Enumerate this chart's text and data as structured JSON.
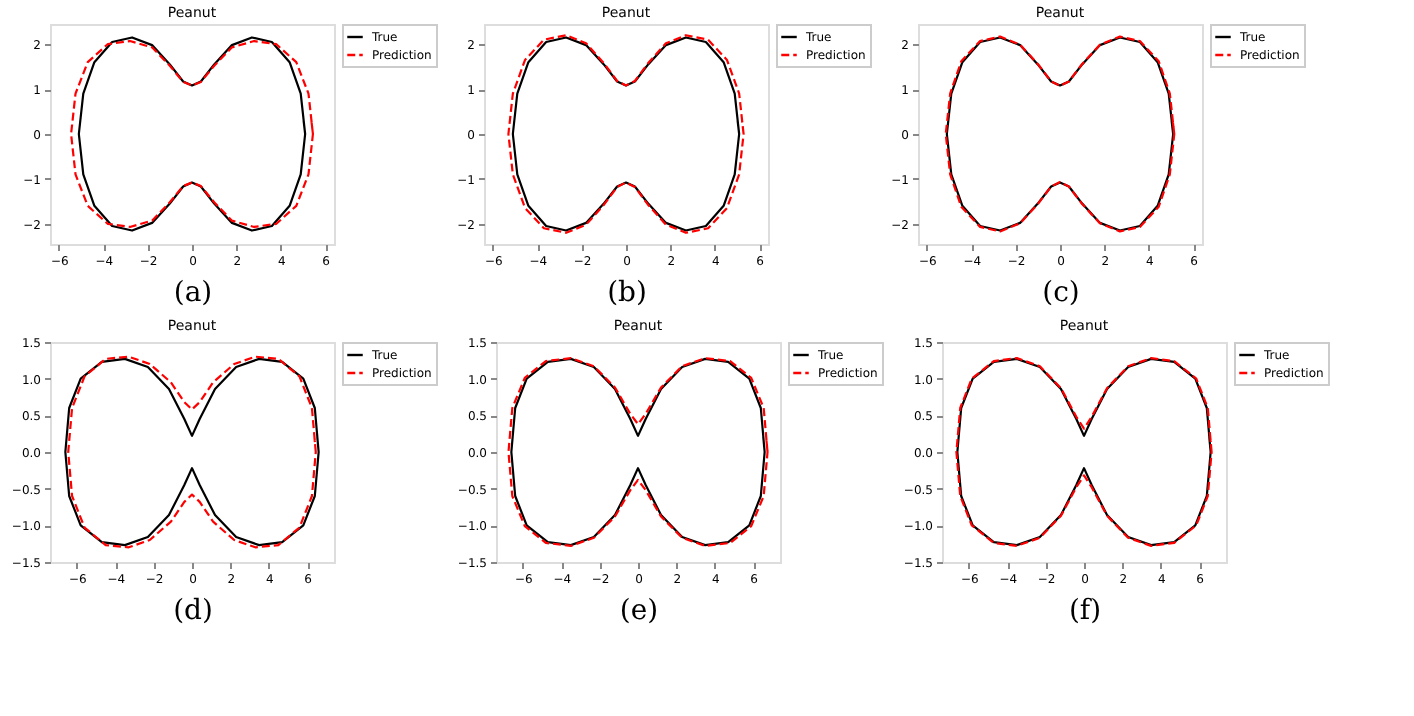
{
  "chart_data": [
    {
      "type": "line",
      "title": "Peanut",
      "annotations": [
        "(a)"
      ],
      "legend": "top right",
      "grid": false,
      "xlim": [
        -6.4,
        6.4
      ],
      "ylim": [
        -2.45,
        2.45
      ],
      "xticks": [
        {
          "value": -6,
          "label": "−6"
        },
        {
          "value": -4,
          "label": "−4"
        },
        {
          "value": -2,
          "label": "−2"
        },
        0,
        2,
        4,
        6
      ],
      "yticks": [
        {
          "value": -2,
          "label": "−2"
        },
        {
          "value": -1,
          "label": "−1"
        },
        0,
        1,
        2
      ],
      "series": [
        {
          "name": "True",
          "color": "#000000",
          "line_style": "solid",
          "x": [
            5.1,
            4.9,
            4.4,
            3.6,
            2.7,
            1.8,
            1.0,
            0.4,
            0,
            -0.4,
            -1.0,
            -1.8,
            -2.7,
            -3.6,
            -4.4,
            -4.9,
            -5.1,
            -4.9,
            -4.4,
            -3.6,
            -2.7,
            -1.8,
            -1.0,
            -0.4,
            0,
            0.4,
            1.0,
            1.8,
            2.7,
            3.6,
            4.4,
            4.9,
            5.1,
            5.03
          ],
          "values": [
            0,
            0.9,
            1.6,
            2.05,
            2.15,
            1.98,
            1.55,
            1.17,
            1.08,
            1.17,
            1.55,
            1.98,
            2.15,
            2.05,
            1.6,
            0.9,
            0,
            -0.9,
            -1.6,
            -2.05,
            -2.15,
            -1.98,
            -1.55,
            -1.17,
            -1.08,
            -1.17,
            -1.55,
            -1.98,
            -2.15,
            -2.05,
            -1.6,
            -0.9,
            0,
            0.3
          ]
        },
        {
          "name": "Prediction",
          "color": "#ff0000",
          "line_style": "dashed",
          "x": [
            5.45,
            5.25,
            4.7,
            3.8,
            2.8,
            1.8,
            1.0,
            0.4,
            0,
            -0.4,
            -1.0,
            -1.8,
            -2.8,
            -3.8,
            -4.7,
            -5.25,
            -5.45,
            -5.25,
            -4.7,
            -3.8,
            -2.8,
            -1.8,
            -1.0,
            -0.4,
            0,
            0.4,
            1.0,
            1.8,
            2.8,
            3.8,
            4.7,
            5.25,
            5.45,
            5.38
          ],
          "values": [
            0,
            0.9,
            1.6,
            2.0,
            2.07,
            1.93,
            1.52,
            1.16,
            1.08,
            1.16,
            1.52,
            1.93,
            2.07,
            2.0,
            1.6,
            0.9,
            0,
            -0.9,
            -1.6,
            -2.0,
            -2.07,
            -1.93,
            -1.52,
            -1.16,
            -1.08,
            -1.16,
            -1.52,
            -1.93,
            -2.07,
            -2.0,
            -1.6,
            -0.9,
            0,
            0.3
          ]
        }
      ]
    },
    {
      "type": "line",
      "title": "Peanut",
      "annotations": [
        "(b)"
      ],
      "legend": "top right",
      "grid": false,
      "xlim": [
        -6.4,
        6.4
      ],
      "ylim": [
        -2.45,
        2.45
      ],
      "xticks": [
        {
          "value": -6,
          "label": "−6"
        },
        {
          "value": -4,
          "label": "−4"
        },
        {
          "value": -2,
          "label": "−2"
        },
        0,
        2,
        4,
        6
      ],
      "yticks": [
        {
          "value": -2,
          "label": "−2"
        },
        {
          "value": -1,
          "label": "−1"
        },
        0,
        1,
        2
      ],
      "series": [
        {
          "name": "True",
          "color": "#000000",
          "line_style": "solid",
          "x": [
            5.1,
            4.9,
            4.4,
            3.6,
            2.7,
            1.8,
            1.0,
            0.4,
            0,
            -0.4,
            -1.0,
            -1.8,
            -2.7,
            -3.6,
            -4.4,
            -4.9,
            -5.1,
            -4.9,
            -4.4,
            -3.6,
            -2.7,
            -1.8,
            -1.0,
            -0.4,
            0,
            0.4,
            1.0,
            1.8,
            2.7,
            3.6,
            4.4,
            4.9,
            5.1,
            5.03
          ],
          "values": [
            0,
            0.9,
            1.6,
            2.05,
            2.15,
            1.98,
            1.55,
            1.17,
            1.08,
            1.17,
            1.55,
            1.98,
            2.15,
            2.05,
            1.6,
            0.9,
            0,
            -0.9,
            -1.6,
            -2.05,
            -2.15,
            -1.98,
            -1.55,
            -1.17,
            -1.08,
            -1.17,
            -1.55,
            -1.98,
            -2.15,
            -2.05,
            -1.6,
            -0.9,
            0,
            0.3
          ]
        },
        {
          "name": "Prediction",
          "color": "#ff0000",
          "line_style": "dashed",
          "x": [
            5.3,
            5.1,
            4.55,
            3.7,
            2.7,
            1.8,
            1.0,
            0.4,
            0,
            -0.4,
            -1.0,
            -1.8,
            -2.7,
            -3.7,
            -4.55,
            -5.1,
            -5.3,
            -5.1,
            -4.55,
            -3.7,
            -2.7,
            -1.8,
            -1.0,
            -0.4,
            0,
            0.4,
            1.0,
            1.8,
            2.7,
            3.7,
            4.55,
            5.1,
            5.3,
            5.23
          ],
          "values": [
            0,
            0.9,
            1.65,
            2.1,
            2.2,
            2.02,
            1.58,
            1.18,
            1.08,
            1.18,
            1.58,
            2.02,
            2.2,
            2.1,
            1.65,
            0.9,
            0,
            -0.9,
            -1.65,
            -2.1,
            -2.2,
            -2.02,
            -1.58,
            -1.18,
            -1.08,
            -1.18,
            -1.58,
            -2.02,
            -2.2,
            -2.1,
            -1.65,
            -0.9,
            0,
            0.3
          ]
        }
      ]
    },
    {
      "type": "line",
      "title": "Peanut",
      "annotations": [
        "(c)"
      ],
      "legend": "top right",
      "grid": false,
      "xlim": [
        -6.4,
        6.4
      ],
      "ylim": [
        -2.45,
        2.45
      ],
      "xticks": [
        {
          "value": -6,
          "label": "−6"
        },
        {
          "value": -4,
          "label": "−4"
        },
        {
          "value": -2,
          "label": "−2"
        },
        0,
        2,
        4,
        6
      ],
      "yticks": [
        {
          "value": -2,
          "label": "−2"
        },
        {
          "value": -1,
          "label": "−1"
        },
        0,
        1,
        2
      ],
      "series": [
        {
          "name": "True",
          "color": "#000000",
          "line_style": "solid",
          "x": [
            5.1,
            4.9,
            4.4,
            3.6,
            2.7,
            1.8,
            1.0,
            0.4,
            0,
            -0.4,
            -1.0,
            -1.8,
            -2.7,
            -3.6,
            -4.4,
            -4.9,
            -5.1,
            -4.9,
            -4.4,
            -3.6,
            -2.7,
            -1.8,
            -1.0,
            -0.4,
            0,
            0.4,
            1.0,
            1.8,
            2.7,
            3.6,
            4.4,
            4.9,
            5.1,
            5.03
          ],
          "values": [
            0,
            0.9,
            1.6,
            2.05,
            2.15,
            1.98,
            1.55,
            1.17,
            1.08,
            1.17,
            1.55,
            1.98,
            2.15,
            2.05,
            1.6,
            0.9,
            0,
            -0.9,
            -1.6,
            -2.05,
            -2.15,
            -1.98,
            -1.55,
            -1.17,
            -1.08,
            -1.17,
            -1.55,
            -1.98,
            -2.15,
            -2.05,
            -1.6,
            -0.9,
            0,
            0.3
          ]
        },
        {
          "name": "Prediction",
          "color": "#ff0000",
          "line_style": "dashed",
          "x": [
            5.15,
            4.95,
            4.45,
            3.6,
            2.7,
            1.8,
            1.0,
            0.4,
            0,
            -0.4,
            -1.0,
            -1.8,
            -2.7,
            -3.6,
            -4.45,
            -4.95,
            -5.15,
            -4.95,
            -4.45,
            -3.6,
            -2.7,
            -1.8,
            -1.0,
            -0.4,
            0,
            0.4,
            1.0,
            1.8,
            2.7,
            3.6,
            4.45,
            4.95,
            5.15,
            5.08
          ],
          "values": [
            0,
            0.9,
            1.62,
            2.07,
            2.17,
            1.99,
            1.56,
            1.17,
            1.07,
            1.17,
            1.56,
            1.99,
            2.17,
            2.07,
            1.62,
            0.9,
            0,
            -0.9,
            -1.62,
            -2.07,
            -2.17,
            -1.99,
            -1.56,
            -1.17,
            -1.07,
            -1.17,
            -1.56,
            -1.99,
            -2.17,
            -2.07,
            -1.62,
            -0.9,
            0,
            0.3
          ]
        }
      ]
    },
    {
      "type": "line",
      "title": "Peanut",
      "annotations": [
        "(d)"
      ],
      "legend": "top right",
      "grid": false,
      "xlim": [
        -7.4,
        7.4
      ],
      "ylim": [
        -1.5,
        1.5
      ],
      "xticks": [
        {
          "value": -6,
          "label": "−6"
        },
        {
          "value": -4,
          "label": "−4"
        },
        {
          "value": -2,
          "label": "−2"
        },
        0,
        2,
        4,
        6
      ],
      "yticks": [
        {
          "value": -1.5,
          "label": "−1.5"
        },
        {
          "value": -1,
          "label": "−1.0"
        },
        {
          "value": -0.5,
          "label": "−0.5"
        },
        {
          "value": 0,
          "label": "0.0"
        },
        0.5,
        {
          "value": 1,
          "label": "1.0"
        },
        1.5
      ],
      "series": [
        {
          "name": "True",
          "color": "#000000",
          "line_style": "solid",
          "x": [
            6.6,
            6.4,
            5.8,
            4.7,
            3.5,
            2.3,
            1.2,
            0.4,
            0,
            -0.4,
            -1.2,
            -2.3,
            -3.5,
            -4.7,
            -5.8,
            -6.4,
            -6.6,
            -6.4,
            -5.8,
            -4.7,
            -3.5,
            -2.3,
            -1.2,
            -0.4,
            0,
            0.4,
            1.2,
            2.3,
            3.5,
            4.7,
            5.8,
            6.4,
            6.6,
            6.53
          ],
          "values": [
            0,
            0.6,
            1.0,
            1.23,
            1.27,
            1.16,
            0.86,
            0.45,
            0.22,
            0.45,
            0.86,
            1.16,
            1.27,
            1.23,
            1.0,
            0.6,
            0,
            -0.6,
            -1.0,
            -1.23,
            -1.27,
            -1.16,
            -0.86,
            -0.45,
            -0.22,
            -0.45,
            -0.86,
            -1.16,
            -1.27,
            -1.23,
            -1.0,
            -0.6,
            0,
            0.2
          ]
        },
        {
          "name": "Prediction",
          "color": "#ff0000",
          "line_style": "dashed",
          "x": [
            6.45,
            6.25,
            5.6,
            4.5,
            3.3,
            2.2,
            1.1,
            0.4,
            0,
            -0.4,
            -1.1,
            -2.2,
            -3.3,
            -4.5,
            -5.6,
            -6.25,
            -6.45,
            -6.25,
            -5.6,
            -4.5,
            -3.3,
            -2.2,
            -1.1,
            -0.4,
            0,
            0.4,
            1.1,
            2.2,
            3.3,
            4.5,
            5.6,
            6.25,
            6.45,
            6.38
          ],
          "values": [
            0,
            0.6,
            1.03,
            1.27,
            1.3,
            1.2,
            0.95,
            0.68,
            0.58,
            0.68,
            0.95,
            1.2,
            1.3,
            1.27,
            1.03,
            0.6,
            0,
            -0.6,
            -1.03,
            -1.27,
            -1.3,
            -1.2,
            -0.95,
            -0.68,
            -0.58,
            -0.68,
            -0.95,
            -1.2,
            -1.3,
            -1.27,
            -1.03,
            -0.6,
            0,
            0.2
          ]
        }
      ]
    },
    {
      "type": "line",
      "title": "Peanut",
      "annotations": [
        "(e)"
      ],
      "legend": "top right",
      "grid": false,
      "xlim": [
        -7.4,
        7.4
      ],
      "ylim": [
        -1.5,
        1.5
      ],
      "xticks": [
        {
          "value": -6,
          "label": "−6"
        },
        {
          "value": -4,
          "label": "−4"
        },
        {
          "value": -2,
          "label": "−2"
        },
        0,
        2,
        4,
        6
      ],
      "yticks": [
        {
          "value": -1.5,
          "label": "−1.5"
        },
        {
          "value": -1,
          "label": "−1.0"
        },
        {
          "value": -0.5,
          "label": "−0.5"
        },
        {
          "value": 0,
          "label": "0.0"
        },
        0.5,
        {
          "value": 1,
          "label": "1.0"
        },
        1.5
      ],
      "series": [
        {
          "name": "True",
          "color": "#000000",
          "line_style": "solid",
          "x": [
            6.6,
            6.4,
            5.8,
            4.7,
            3.5,
            2.3,
            1.2,
            0.4,
            0,
            -0.4,
            -1.2,
            -2.3,
            -3.5,
            -4.7,
            -5.8,
            -6.4,
            -6.6,
            -6.4,
            -5.8,
            -4.7,
            -3.5,
            -2.3,
            -1.2,
            -0.4,
            0,
            0.4,
            1.2,
            2.3,
            3.5,
            4.7,
            5.8,
            6.4,
            6.6,
            6.53
          ],
          "values": [
            0,
            0.6,
            1.0,
            1.23,
            1.27,
            1.16,
            0.86,
            0.45,
            0.22,
            0.45,
            0.86,
            1.16,
            1.27,
            1.23,
            1.0,
            0.6,
            0,
            -0.6,
            -1.0,
            -1.23,
            -1.27,
            -1.16,
            -0.86,
            -0.45,
            -0.22,
            -0.45,
            -0.86,
            -1.16,
            -1.27,
            -1.23,
            -1.0,
            -0.6,
            0,
            0.2
          ]
        },
        {
          "name": "Prediction",
          "color": "#ff0000",
          "line_style": "dashed",
          "x": [
            6.75,
            6.55,
            5.9,
            4.8,
            3.5,
            2.3,
            1.2,
            0.4,
            0,
            -0.4,
            -1.2,
            -2.3,
            -3.5,
            -4.8,
            -5.9,
            -6.55,
            -6.75,
            -6.55,
            -5.9,
            -4.8,
            -3.5,
            -2.3,
            -1.2,
            -0.4,
            0,
            0.4,
            1.2,
            2.3,
            3.5,
            4.8,
            5.9,
            6.55,
            6.75,
            6.68
          ],
          "values": [
            0,
            0.6,
            1.01,
            1.24,
            1.28,
            1.17,
            0.88,
            0.52,
            0.38,
            0.52,
            0.88,
            1.17,
            1.28,
            1.24,
            1.01,
            0.6,
            0,
            -0.6,
            -1.01,
            -1.24,
            -1.28,
            -1.17,
            -0.88,
            -0.52,
            -0.38,
            -0.52,
            -0.88,
            -1.17,
            -1.28,
            -1.24,
            -1.01,
            -0.6,
            0,
            0.2
          ]
        }
      ]
    },
    {
      "type": "line",
      "title": "Peanut",
      "annotations": [
        "(f)"
      ],
      "legend": "top right",
      "grid": false,
      "xlim": [
        -7.4,
        7.4
      ],
      "ylim": [
        -1.5,
        1.5
      ],
      "xticks": [
        {
          "value": -6,
          "label": "−6"
        },
        {
          "value": -4,
          "label": "−4"
        },
        {
          "value": -2,
          "label": "−2"
        },
        0,
        2,
        4,
        6
      ],
      "yticks": [
        {
          "value": -1.5,
          "label": "−1.5"
        },
        {
          "value": -1,
          "label": "−1.0"
        },
        {
          "value": -0.5,
          "label": "−0.5"
        },
        {
          "value": 0,
          "label": "0.0"
        },
        0.5,
        {
          "value": 1,
          "label": "1.0"
        },
        1.5
      ],
      "series": [
        {
          "name": "True",
          "color": "#000000",
          "line_style": "solid",
          "x": [
            6.6,
            6.4,
            5.8,
            4.7,
            3.5,
            2.3,
            1.2,
            0.4,
            0,
            -0.4,
            -1.2,
            -2.3,
            -3.5,
            -4.7,
            -5.8,
            -6.4,
            -6.6,
            -6.4,
            -5.8,
            -4.7,
            -3.5,
            -2.3,
            -1.2,
            -0.4,
            0,
            0.4,
            1.2,
            2.3,
            3.5,
            4.7,
            5.8,
            6.4,
            6.6,
            6.53
          ],
          "values": [
            0,
            0.6,
            1.0,
            1.23,
            1.27,
            1.16,
            0.86,
            0.45,
            0.22,
            0.45,
            0.86,
            1.16,
            1.27,
            1.23,
            1.0,
            0.6,
            0,
            -0.6,
            -1.0,
            -1.23,
            -1.27,
            -1.16,
            -0.86,
            -0.45,
            -0.22,
            -0.45,
            -0.86,
            -1.16,
            -1.27,
            -1.23,
            -1.0,
            -0.6,
            0,
            0.2
          ]
        },
        {
          "name": "Prediction",
          "color": "#ff0000",
          "line_style": "dashed",
          "x": [
            6.65,
            6.45,
            5.85,
            4.7,
            3.5,
            2.3,
            1.2,
            0.4,
            0,
            -0.4,
            -1.2,
            -2.3,
            -3.5,
            -4.7,
            -5.85,
            -6.45,
            -6.65,
            -6.45,
            -5.85,
            -4.7,
            -3.5,
            -2.3,
            -1.2,
            -0.4,
            0,
            0.4,
            1.2,
            2.3,
            3.5,
            4.7,
            5.85,
            6.45,
            6.65,
            6.58
          ],
          "values": [
            0,
            0.6,
            1.0,
            1.24,
            1.28,
            1.17,
            0.87,
            0.48,
            0.32,
            0.48,
            0.87,
            1.17,
            1.28,
            1.24,
            1.0,
            0.6,
            0,
            -0.6,
            -1.0,
            -1.24,
            -1.28,
            -1.17,
            -0.87,
            -0.48,
            -0.32,
            -0.48,
            -0.87,
            -1.17,
            -1.28,
            -1.24,
            -1.0,
            -0.6,
            0,
            0.2
          ]
        }
      ]
    }
  ]
}
